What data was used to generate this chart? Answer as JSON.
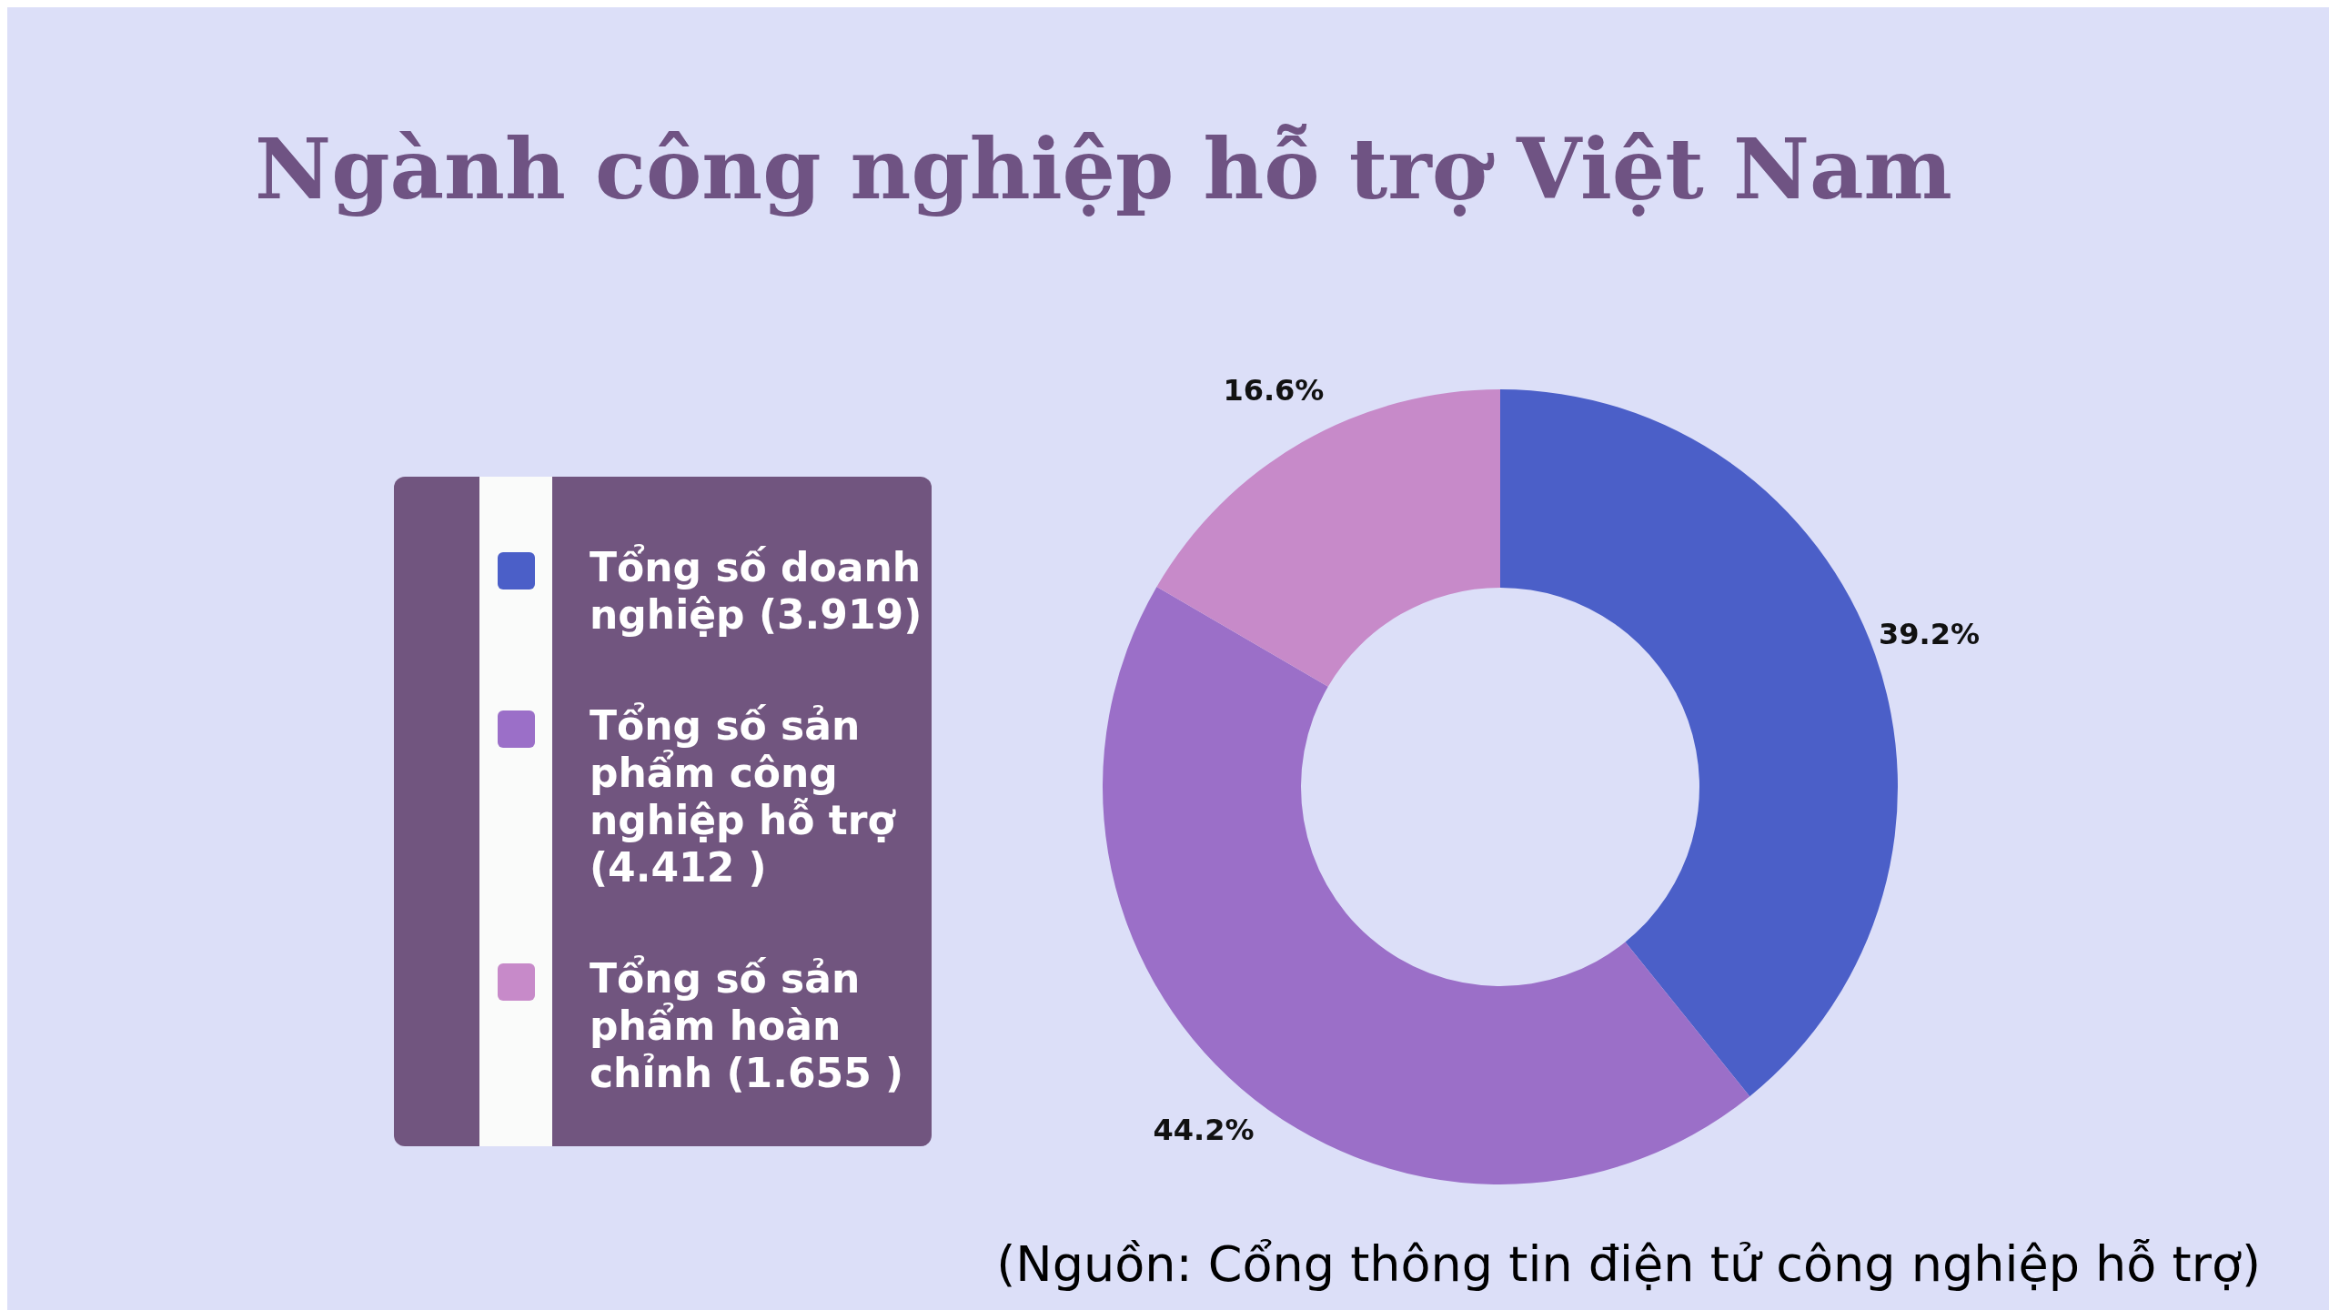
{
  "chart_data": {
    "type": "donut",
    "title": "Ngành công nghiệp hỗ trợ Việt Nam",
    "categories": [
      "Tổng số doanh nghiệp (3.919)",
      "Tổng số sản phẩm công nghiệp hỗ trợ (4.412 )",
      "Tổng số sản phẩm hoàn chỉnh (1.655 )"
    ],
    "values": [
      39.2,
      44.2,
      16.6
    ],
    "colors": [
      "#4b5fc8",
      "#9b6fc8",
      "#c78ac9"
    ],
    "value_labels": [
      "39.2%",
      "44.2%",
      "16.6%"
    ],
    "legend": "left",
    "annotations": [
      "(Nguồn: Cổng thông tin điện tử công nghiệp hỗ trợ)"
    ]
  }
}
